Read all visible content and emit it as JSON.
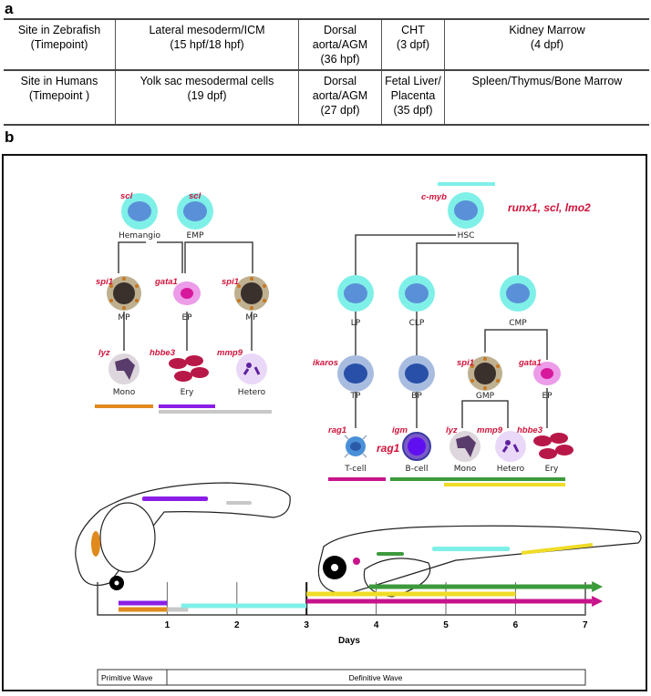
{
  "panel_a": {
    "label": "a",
    "rows": [
      [
        "Site in Zebrafish\n(Timepoint)",
        "Lateral mesoderm/ICM\n(15 hpf/18 hpf)",
        "Dorsal aorta/AGM\n(36 hpf)",
        "CHT\n(3 dpf)",
        "Kidney Marrow\n(4 dpf)"
      ],
      [
        "Site in Humans\n(Timepoint )",
        "Yolk sac mesodermal cells\n(19 dpf)",
        "Dorsal aorta/AGM\n(27 dpf)",
        "Fetal Liver/\nPlacenta\n(35 dpf)",
        "Spleen/Thymus/Bone Marrow"
      ]
    ]
  },
  "panel_b": {
    "label": "b",
    "primitive": {
      "cells": {
        "hemangio": "Hemangio",
        "emp": "EMP",
        "mp1": "MP",
        "ep": "EP",
        "mp2": "MP",
        "mono": "Mono",
        "ery": "Ery",
        "hetero": "Hetero"
      },
      "genes": {
        "scl1": "scl",
        "scl2": "scl",
        "spi1a": "spi1",
        "gata1": "gata1",
        "spi1b": "spi1",
        "lyz": "lyz",
        "hbbe3": "hbbe3",
        "mmp9": "mmp9"
      }
    },
    "definitive": {
      "cells": {
        "hsc": "HSC",
        "lp": "LP",
        "clp": "CLP",
        "cmp": "CMP",
        "tp": "TP",
        "bp": "BP",
        "gmp": "GMP",
        "ep": "EP",
        "tcell": "T-cell",
        "bcell": "B-cell",
        "mono": "Mono",
        "hetero": "Hetero",
        "ery": "Ery"
      },
      "genes": {
        "cmyb": "c-myb",
        "hsc_markers": "runx1, scl, lmo2",
        "ikaros": "ikaros",
        "spi1": "spi1",
        "gata1": "gata1",
        "rag1": "rag1",
        "igm": "igm",
        "rag1_b": "rag1",
        "lyz": "lyz",
        "mmp9": "mmp9",
        "hbbe3": "hbbe3"
      }
    },
    "timeline": {
      "ticks": [
        "1",
        "2",
        "3",
        "4",
        "5",
        "6",
        "7"
      ],
      "xlabel": "Days",
      "waves": {
        "primitive": "Primitive Wave",
        "definitive": "Definitive Wave"
      },
      "bars": [
        {
          "color": "#8a1ee6",
          "start": 0.3,
          "end": 1
        },
        {
          "color": "#e08a1e",
          "start": 0.3,
          "end": 1
        },
        {
          "color": "#c8c8c8",
          "start": 1,
          "end": 1.3
        },
        {
          "color": "#7ff0e8",
          "start": 1.2,
          "end": 3
        },
        {
          "color": "#f0dc28",
          "start": 3,
          "end": 6
        },
        {
          "color": "#3c9a3c",
          "start": 3.9,
          "end": 7.2,
          "arrow": true
        },
        {
          "color": "#c8148c",
          "start": 3,
          "end": 7.2,
          "arrow": true
        }
      ]
    },
    "colors": {
      "progenitor_outer": "#7ff0e8",
      "progenitor_inner": "#5a90d8",
      "gene": "#d0143c"
    }
  }
}
